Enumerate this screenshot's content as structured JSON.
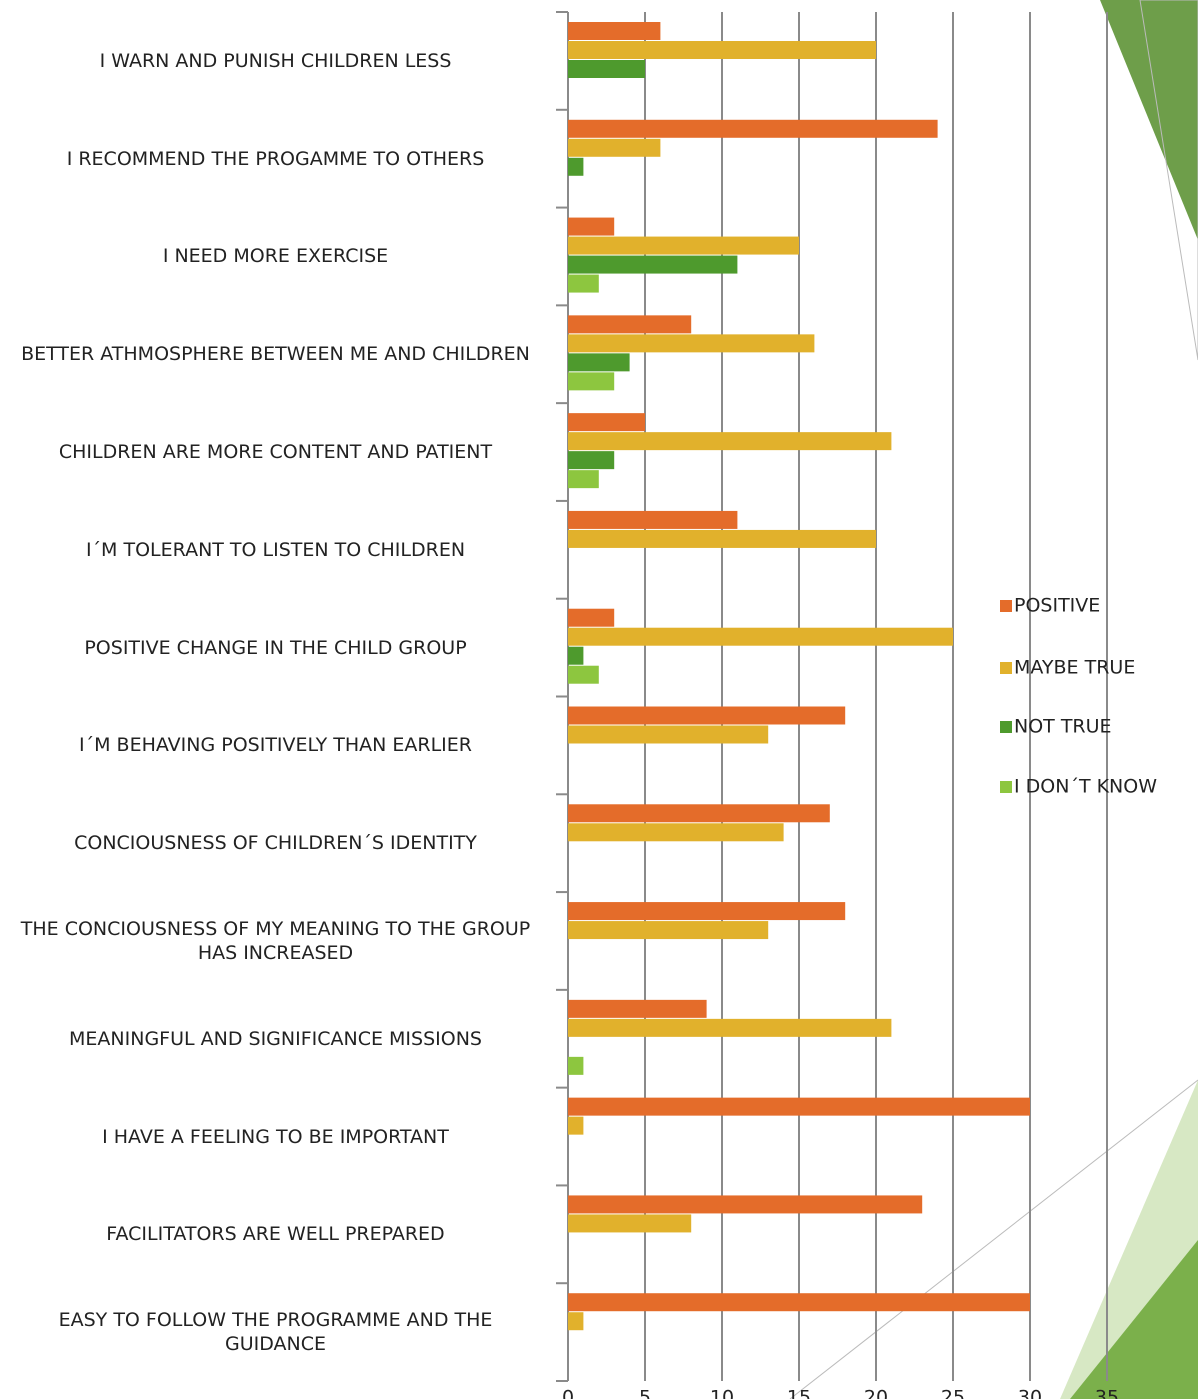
{
  "chart_data": {
    "type": "hbar",
    "categories": [
      "I WARN AND PUNISH CHILDREN LESS",
      "I RECOMMEND THE PROGAMME TO OTHERS",
      "I NEED MORE EXERCISE",
      "BETTER ATHMOSPHERE BETWEEN ME AND CHILDREN",
      "CHILDREN ARE MORE CONTENT AND PATIENT",
      "I´M TOLERANT TO LISTEN TO CHILDREN",
      "POSITIVE CHANGE IN THE CHILD GROUP",
      "I´M BEHAVING POSITIVELY THAN EARLIER",
      "CONCIOUSNESS OF CHILDREN´S IDENTITY",
      "THE CONCIOUSNESS OF MY MEANING TO THE GROUP HAS INCREASED",
      "MEANINGFUL AND SIGNIFICANCE MISSIONS",
      "I HAVE A FEELING TO BE IMPORTANT",
      "FACILITATORS ARE WELL PREPARED",
      "EASY TO FOLLOW THE PROGRAMME AND THE GUIDANCE"
    ],
    "series": [
      {
        "name": "POSITIVE",
        "color": "#e46c2a",
        "values": [
          6,
          24,
          3,
          8,
          5,
          11,
          3,
          18,
          17,
          18,
          9,
          30,
          23,
          30
        ]
      },
      {
        "name": "MAYBE TRUE",
        "color": "#e1b12c",
        "values": [
          20,
          6,
          15,
          16,
          21,
          20,
          25,
          13,
          14,
          13,
          21,
          1,
          8,
          1
        ]
      },
      {
        "name": "NOT TRUE",
        "color": "#4e9a2d",
        "values": [
          5,
          1,
          11,
          4,
          3,
          0,
          1,
          0,
          0,
          0,
          0,
          0,
          0,
          0
        ]
      },
      {
        "name": "I DON´T KNOW",
        "color": "#8dc63f",
        "values": [
          0,
          0,
          2,
          3,
          2,
          0,
          2,
          0,
          0,
          0,
          1,
          0,
          0,
          0
        ]
      }
    ],
    "xlim": [
      0,
      35
    ],
    "xticks": [
      0,
      5,
      10,
      15,
      20,
      25,
      30,
      35
    ],
    "grid": true,
    "legend": "right"
  }
}
